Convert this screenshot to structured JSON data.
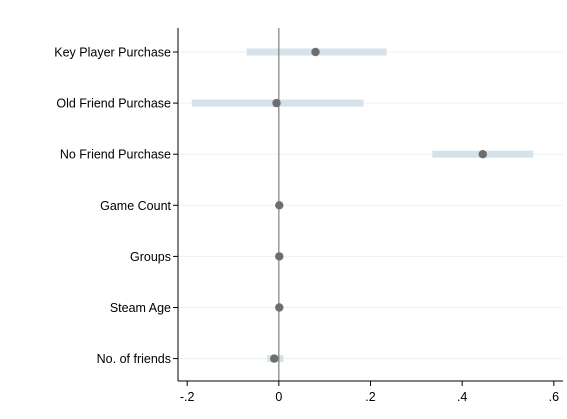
{
  "chart_data": {
    "type": "scatter",
    "title": "",
    "xlabel": "",
    "ylabel": "",
    "xlim": [
      -0.22,
      0.62
    ],
    "x_ticks": [
      -0.2,
      0,
      0.2,
      0.4,
      0.6
    ],
    "x_tick_labels": [
      "-.2",
      "0",
      ".2",
      ".4",
      ".6"
    ],
    "reference_line_x": 0,
    "grid": true,
    "categories": [
      "Key Player Purchase",
      "Old Friend Purchase",
      "No Friend Purchase",
      "Game Count",
      "Groups",
      "Steam Age",
      "No. of friends"
    ],
    "series": [
      {
        "estimates": [
          0.08,
          -0.005,
          0.445,
          0.001,
          0.001,
          0.001,
          -0.01
        ],
        "ci_low": [
          -0.07,
          -0.19,
          0.335,
          -0.002,
          -0.002,
          -0.002,
          -0.025
        ],
        "ci_high": [
          0.235,
          0.185,
          0.555,
          0.004,
          0.004,
          0.004,
          0.01
        ]
      }
    ],
    "colors": {
      "point": "#6e6e6e",
      "ci_band": "#d6e2ea",
      "grid": "#eaf2f3",
      "axis": "#000000",
      "reference_line": "#808080"
    }
  }
}
